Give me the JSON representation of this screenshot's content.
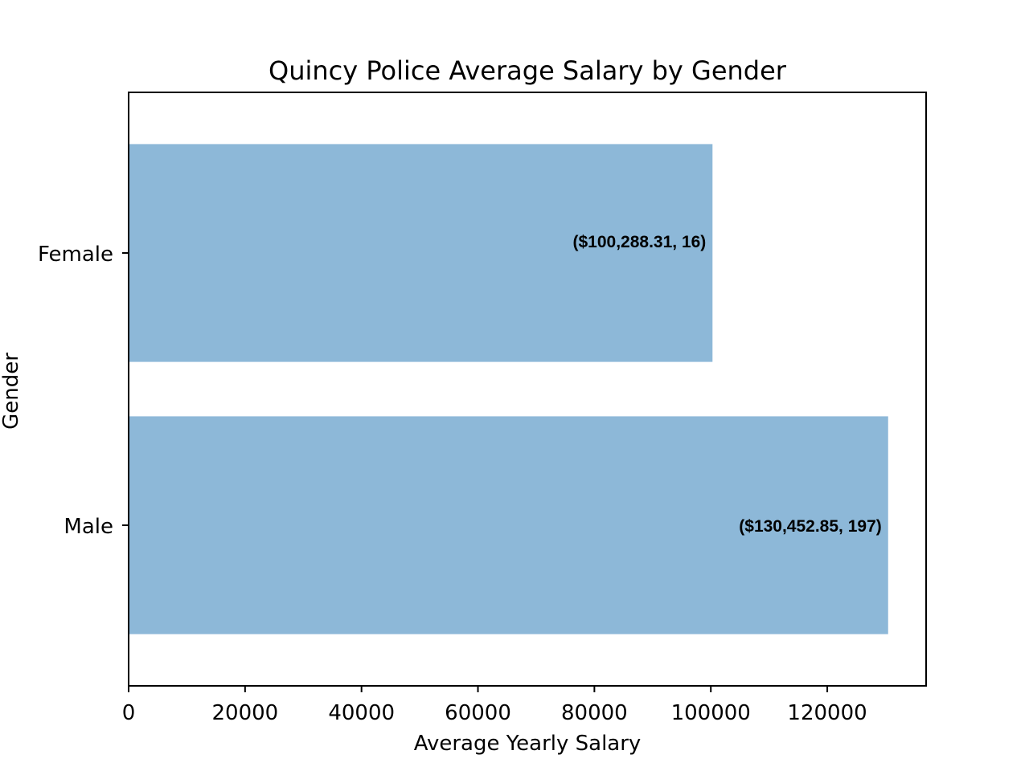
{
  "chart_data": {
    "type": "bar",
    "orientation": "horizontal",
    "title": "Quincy Police Average Salary by Gender",
    "xlabel": "Average Yearly Salary",
    "ylabel": "Gender",
    "categories": [
      "Male",
      "Female"
    ],
    "values": [
      130452.85,
      100288.31
    ],
    "data_labels": [
      "($130,452.85, 197)",
      "($100,288.31, 16)"
    ],
    "xlim": [
      0,
      136975
    ],
    "xticks": [
      0,
      20000,
      40000,
      60000,
      80000,
      100000,
      120000
    ],
    "xtick_labels": [
      "0",
      "20000",
      "40000",
      "60000",
      "80000",
      "100000",
      "120000"
    ],
    "grid": false,
    "bar_color": "#8db8d8"
  }
}
